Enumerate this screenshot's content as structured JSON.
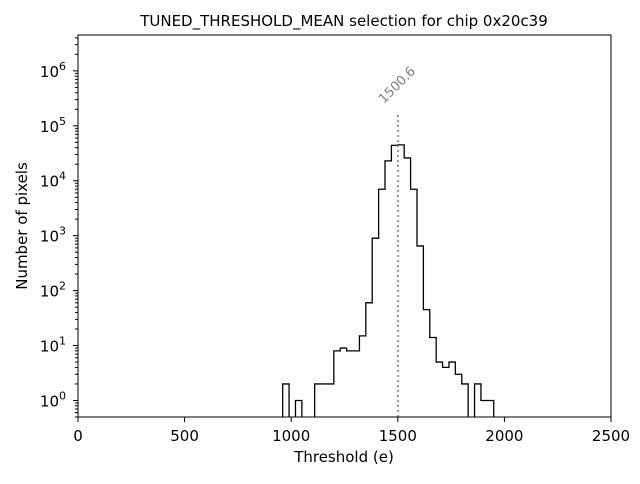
{
  "chart_data": {
    "type": "histogram",
    "title": "TUNED_THRESHOLD_MEAN selection for chip 0x20c39",
    "xlabel": "Threshold (e)",
    "ylabel": "Number of pixels",
    "xlim": [
      0,
      2500
    ],
    "ylim": [
      0.5,
      4500000
    ],
    "yscale": "log",
    "grid": false,
    "bin_width": 30,
    "x_ticks": [
      {
        "value": 0,
        "label": "0"
      },
      {
        "value": 500,
        "label": "500"
      },
      {
        "value": 1000,
        "label": "1000"
      },
      {
        "value": 1500,
        "label": "1500"
      },
      {
        "value": 2000,
        "label": "2000"
      },
      {
        "value": 2500,
        "label": "2500"
      }
    ],
    "y_ticks": [
      {
        "value": 1,
        "base": "10",
        "exp": "0"
      },
      {
        "value": 10,
        "base": "10",
        "exp": "1"
      },
      {
        "value": 100,
        "base": "10",
        "exp": "2"
      },
      {
        "value": 1000,
        "base": "10",
        "exp": "3"
      },
      {
        "value": 10000,
        "base": "10",
        "exp": "4"
      },
      {
        "value": 100000,
        "base": "10",
        "exp": "5"
      },
      {
        "value": 1000000,
        "base": "10",
        "exp": "6"
      }
    ],
    "bins": [
      {
        "x0": 960,
        "x1": 990,
        "count": 2
      },
      {
        "x0": 990,
        "x1": 1020,
        "count": 0
      },
      {
        "x0": 1020,
        "x1": 1050,
        "count": 1
      },
      {
        "x0": 1050,
        "x1": 1110,
        "count": 0
      },
      {
        "x0": 1110,
        "x1": 1200,
        "count": 2
      },
      {
        "x0": 1200,
        "x1": 1230,
        "count": 8
      },
      {
        "x0": 1230,
        "x1": 1260,
        "count": 9
      },
      {
        "x0": 1260,
        "x1": 1320,
        "count": 8
      },
      {
        "x0": 1320,
        "x1": 1350,
        "count": 15
      },
      {
        "x0": 1350,
        "x1": 1380,
        "count": 60
      },
      {
        "x0": 1380,
        "x1": 1410,
        "count": 900
      },
      {
        "x0": 1410,
        "x1": 1440,
        "count": 7000
      },
      {
        "x0": 1440,
        "x1": 1470,
        "count": 23000
      },
      {
        "x0": 1470,
        "x1": 1500,
        "count": 44000
      },
      {
        "x0": 1500,
        "x1": 1530,
        "count": 45000
      },
      {
        "x0": 1530,
        "x1": 1560,
        "count": 26000
      },
      {
        "x0": 1560,
        "x1": 1590,
        "count": 7000
      },
      {
        "x0": 1590,
        "x1": 1620,
        "count": 650
      },
      {
        "x0": 1620,
        "x1": 1650,
        "count": 45
      },
      {
        "x0": 1650,
        "x1": 1680,
        "count": 14
      },
      {
        "x0": 1680,
        "x1": 1710,
        "count": 5
      },
      {
        "x0": 1710,
        "x1": 1740,
        "count": 4
      },
      {
        "x0": 1740,
        "x1": 1770,
        "count": 5
      },
      {
        "x0": 1770,
        "x1": 1800,
        "count": 3
      },
      {
        "x0": 1800,
        "x1": 1830,
        "count": 2
      },
      {
        "x0": 1830,
        "x1": 1860,
        "count": 0
      },
      {
        "x0": 1860,
        "x1": 1890,
        "count": 2
      },
      {
        "x0": 1890,
        "x1": 1950,
        "count": 1
      }
    ],
    "marker": {
      "value": 1500.6,
      "label": "1500.6",
      "line_style": "dotted",
      "color": "#808080"
    },
    "line_color": "#000000"
  }
}
